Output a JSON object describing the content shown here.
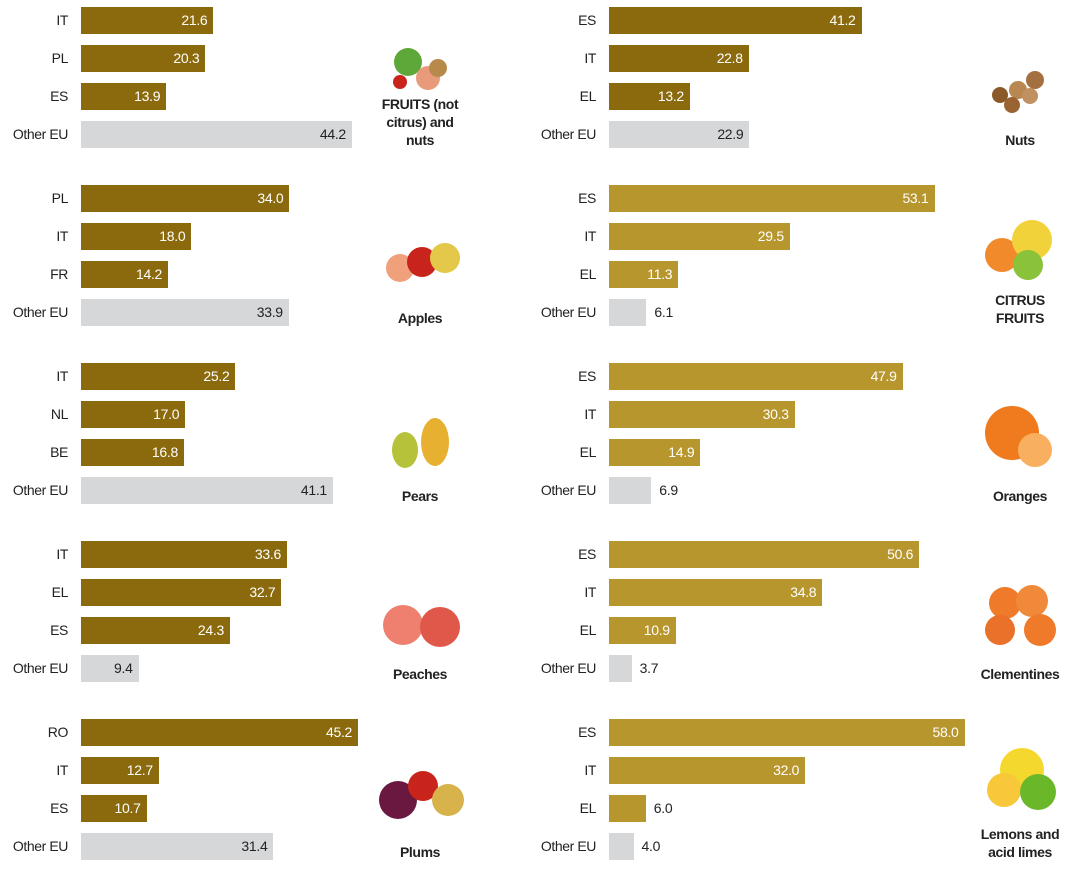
{
  "chart_data": [
    {
      "type": "bar",
      "title": "FRUITS (not citrus) and nuts",
      "categories": [
        "IT",
        "PL",
        "ES",
        "Other EU"
      ],
      "values": [
        21.6,
        20.3,
        13.9,
        44.2
      ],
      "value_labels": [
        "21.6",
        "20.3",
        "13.9",
        "44.2"
      ],
      "colors": [
        "#8a6a0c",
        "#8a6a0c",
        "#8a6a0c",
        "#d6d7d9"
      ]
    },
    {
      "type": "bar",
      "title": "Apples",
      "categories": [
        "PL",
        "IT",
        "FR",
        "Other EU"
      ],
      "values": [
        34.0,
        18.0,
        14.2,
        33.9
      ],
      "value_labels": [
        "34.0",
        "18.0",
        "14.2",
        "33.9"
      ],
      "colors": [
        "#8a6a0c",
        "#8a6a0c",
        "#8a6a0c",
        "#d6d7d9"
      ]
    },
    {
      "type": "bar",
      "title": "Pears",
      "categories": [
        "IT",
        "NL",
        "BE",
        "Other EU"
      ],
      "values": [
        25.2,
        17.0,
        16.8,
        41.1
      ],
      "value_labels": [
        "25.2",
        "17.0",
        "16.8",
        "41.1"
      ],
      "colors": [
        "#8a6a0c",
        "#8a6a0c",
        "#8a6a0c",
        "#d6d7d9"
      ]
    },
    {
      "type": "bar",
      "title": "Peaches",
      "categories": [
        "IT",
        "EL",
        "ES",
        "Other EU"
      ],
      "values": [
        33.6,
        32.7,
        24.3,
        9.4
      ],
      "value_labels": [
        "33.6",
        "32.7",
        "24.3",
        "9.4"
      ],
      "colors": [
        "#8a6a0c",
        "#8a6a0c",
        "#8a6a0c",
        "#d6d7d9"
      ]
    },
    {
      "type": "bar",
      "title": "Plums",
      "categories": [
        "RO",
        "IT",
        "ES",
        "Other EU"
      ],
      "values": [
        45.2,
        12.7,
        10.7,
        31.4
      ],
      "value_labels": [
        "45.2",
        "12.7",
        "10.7",
        "31.4"
      ],
      "colors": [
        "#8a6a0c",
        "#8a6a0c",
        "#8a6a0c",
        "#d6d7d9"
      ]
    },
    {
      "type": "bar",
      "title": "Nuts",
      "categories": [
        "ES",
        "IT",
        "EL",
        "Other EU"
      ],
      "values": [
        41.2,
        22.8,
        13.2,
        22.9
      ],
      "value_labels": [
        "41.2",
        "22.8",
        "13.2",
        "22.9"
      ],
      "colors": [
        "#8a6a0c",
        "#8a6a0c",
        "#8a6a0c",
        "#d6d7d9"
      ]
    },
    {
      "type": "bar",
      "title": "CITRUS FRUITS",
      "categories": [
        "ES",
        "IT",
        "EL",
        "Other EU"
      ],
      "values": [
        53.1,
        29.5,
        11.3,
        6.1
      ],
      "value_labels": [
        "53.1",
        "29.5",
        "11.3",
        "6.1"
      ],
      "colors": [
        "#b8962e",
        "#b8962e",
        "#b8962e",
        "#d6d7d9"
      ]
    },
    {
      "type": "bar",
      "title": "Oranges",
      "categories": [
        "ES",
        "IT",
        "EL",
        "Other EU"
      ],
      "values": [
        47.9,
        30.3,
        14.9,
        6.9
      ],
      "value_labels": [
        "47.9",
        "30.3",
        "14.9",
        "6.9"
      ],
      "colors": [
        "#b8962e",
        "#b8962e",
        "#b8962e",
        "#d6d7d9"
      ]
    },
    {
      "type": "bar",
      "title": "Clementines",
      "categories": [
        "ES",
        "IT",
        "EL",
        "Other EU"
      ],
      "values": [
        50.6,
        34.8,
        10.9,
        3.7
      ],
      "value_labels": [
        "50.6",
        "34.8",
        "10.9",
        "3.7"
      ],
      "colors": [
        "#b8962e",
        "#b8962e",
        "#b8962e",
        "#d6d7d9"
      ]
    },
    {
      "type": "bar",
      "title": "Lemons and acid limes",
      "categories": [
        "ES",
        "IT",
        "EL",
        "Other EU"
      ],
      "values": [
        58.0,
        32.0,
        6.0,
        4.0
      ],
      "value_labels": [
        "58.0",
        "32.0",
        "6.0",
        "4.0"
      ],
      "colors": [
        "#b8962e",
        "#b8962e",
        "#b8962e",
        "#d6d7d9"
      ]
    }
  ]
}
